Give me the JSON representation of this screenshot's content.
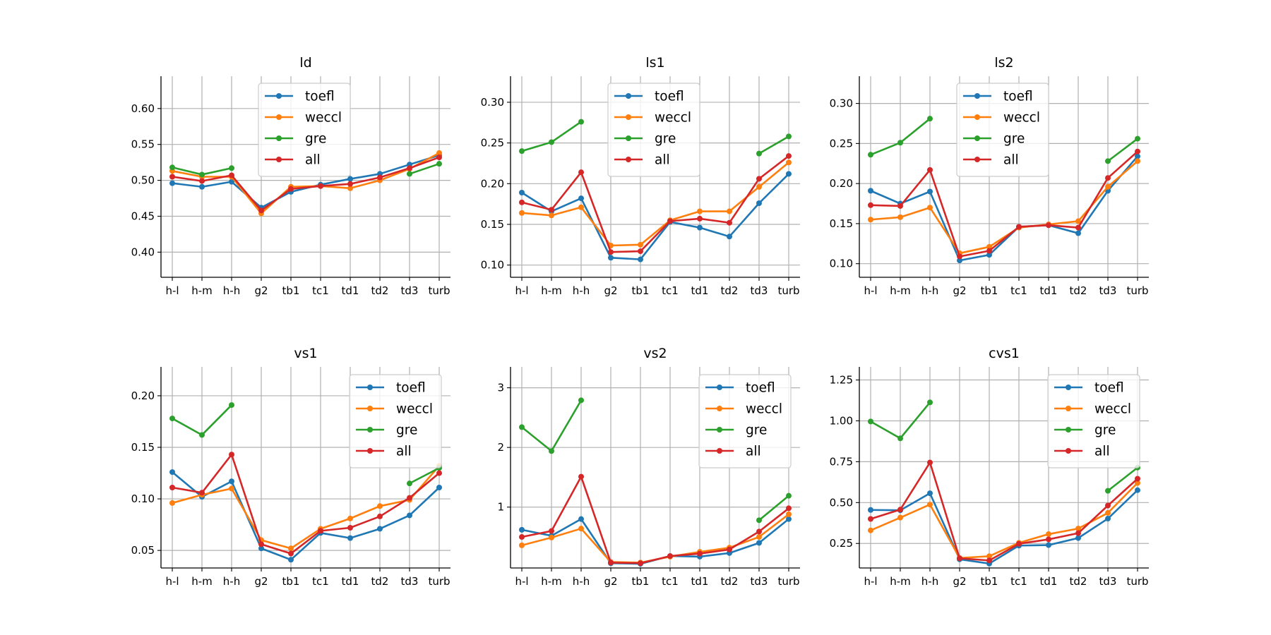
{
  "chart_data": [
    {
      "type": "line",
      "title": "ld",
      "categories": [
        "h-l",
        "h-m",
        "h-h",
        "g2",
        "tb1",
        "tc1",
        "td1",
        "td2",
        "td3",
        "turb"
      ],
      "ylim": [
        0.365,
        0.645
      ],
      "yticks": [
        0.4,
        0.45,
        0.5,
        0.55,
        0.6
      ],
      "ytick_labels": [
        "0.40",
        "0.45",
        "0.50",
        "0.55",
        "0.60"
      ],
      "grid": true,
      "legend": "top-center",
      "series": [
        {
          "name": "toefl",
          "color": "#1f77b4",
          "values": [
            0.496,
            0.491,
            0.498,
            0.462,
            0.484,
            0.494,
            0.502,
            0.509,
            0.522,
            0.535
          ]
        },
        {
          "name": "weccl",
          "color": "#ff7f0e",
          "values": [
            0.513,
            0.505,
            0.505,
            0.454,
            0.491,
            0.492,
            0.489,
            0.5,
            0.516,
            0.538
          ]
        },
        {
          "name": "gre",
          "color": "#2ca02c",
          "values": [
            0.518,
            0.508,
            0.517,
            null,
            null,
            null,
            null,
            null,
            0.509,
            0.523
          ]
        },
        {
          "name": "all",
          "color": "#d62728",
          "values": [
            0.505,
            0.499,
            0.507,
            0.458,
            0.488,
            0.492,
            0.495,
            0.504,
            0.517,
            0.532
          ]
        }
      ]
    },
    {
      "type": "line",
      "title": "ls1",
      "categories": [
        "h-l",
        "h-m",
        "h-h",
        "g2",
        "tb1",
        "tc1",
        "td1",
        "td2",
        "td3",
        "turb"
      ],
      "ylim": [
        0.085,
        0.332
      ],
      "yticks": [
        0.1,
        0.15,
        0.2,
        0.25,
        0.3
      ],
      "ytick_labels": [
        "0.10",
        "0.15",
        "0.20",
        "0.25",
        "0.30"
      ],
      "grid": true,
      "legend": "top-center",
      "series": [
        {
          "name": "toefl",
          "color": "#1f77b4",
          "values": [
            0.189,
            0.166,
            0.182,
            0.109,
            0.107,
            0.153,
            0.146,
            0.135,
            0.176,
            0.212
          ]
        },
        {
          "name": "weccl",
          "color": "#ff7f0e",
          "values": [
            0.164,
            0.161,
            0.171,
            0.124,
            0.125,
            0.155,
            0.166,
            0.166,
            0.196,
            0.226
          ]
        },
        {
          "name": "gre",
          "color": "#2ca02c",
          "values": [
            0.24,
            0.251,
            0.276,
            null,
            null,
            null,
            null,
            null,
            0.237,
            0.258
          ]
        },
        {
          "name": "all",
          "color": "#d62728",
          "values": [
            0.177,
            0.168,
            0.214,
            0.116,
            0.117,
            0.154,
            0.157,
            0.152,
            0.206,
            0.234
          ]
        }
      ]
    },
    {
      "type": "line",
      "title": "ls2",
      "categories": [
        "h-l",
        "h-m",
        "h-h",
        "g2",
        "tb1",
        "tc1",
        "td1",
        "td2",
        "td3",
        "turb"
      ],
      "ylim": [
        0.083,
        0.334
      ],
      "yticks": [
        0.1,
        0.15,
        0.2,
        0.25,
        0.3
      ],
      "ytick_labels": [
        "0.10",
        "0.15",
        "0.20",
        "0.25",
        "0.30"
      ],
      "grid": true,
      "legend": "top-center",
      "series": [
        {
          "name": "toefl",
          "color": "#1f77b4",
          "values": [
            0.191,
            0.175,
            0.19,
            0.104,
            0.111,
            0.146,
            0.148,
            0.138,
            0.191,
            0.234
          ]
        },
        {
          "name": "weccl",
          "color": "#ff7f0e",
          "values": [
            0.155,
            0.158,
            0.17,
            0.113,
            0.121,
            0.145,
            0.149,
            0.153,
            0.196,
            0.228
          ]
        },
        {
          "name": "gre",
          "color": "#2ca02c",
          "values": [
            0.236,
            0.251,
            0.281,
            null,
            null,
            null,
            null,
            null,
            0.228,
            0.256
          ]
        },
        {
          "name": "all",
          "color": "#d62728",
          "values": [
            0.173,
            0.172,
            0.217,
            0.109,
            0.116,
            0.146,
            0.148,
            0.145,
            0.207,
            0.24
          ]
        }
      ]
    },
    {
      "type": "line",
      "title": "vs1",
      "categories": [
        "h-l",
        "h-m",
        "h-h",
        "g2",
        "tb1",
        "tc1",
        "td1",
        "td2",
        "td3",
        "turb"
      ],
      "ylim": [
        0.033,
        0.228
      ],
      "yticks": [
        0.05,
        0.1,
        0.15,
        0.2
      ],
      "ytick_labels": [
        "0.05",
        "0.10",
        "0.15",
        "0.20"
      ],
      "grid": true,
      "legend": "top-right",
      "series": [
        {
          "name": "toefl",
          "color": "#1f77b4",
          "values": [
            0.126,
            0.102,
            0.117,
            0.052,
            0.041,
            0.067,
            0.062,
            0.071,
            0.084,
            0.111
          ]
        },
        {
          "name": "weccl",
          "color": "#ff7f0e",
          "values": [
            0.096,
            0.104,
            0.11,
            0.06,
            0.052,
            0.071,
            0.081,
            0.093,
            0.099,
            0.132
          ]
        },
        {
          "name": "gre",
          "color": "#2ca02c",
          "values": [
            0.178,
            0.162,
            0.191,
            null,
            null,
            null,
            null,
            null,
            0.115,
            0.13
          ]
        },
        {
          "name": "all",
          "color": "#d62728",
          "values": [
            0.111,
            0.106,
            0.143,
            0.056,
            0.047,
            0.069,
            0.072,
            0.083,
            0.101,
            0.125
          ]
        }
      ]
    },
    {
      "type": "line",
      "title": "vs2",
      "categories": [
        "h-l",
        "h-m",
        "h-h",
        "g2",
        "tb1",
        "tc1",
        "td1",
        "td2",
        "td3",
        "turb"
      ],
      "ylim": [
        -0.02,
        3.35
      ],
      "yticks": [
        1,
        2,
        3
      ],
      "ytick_labels": [
        "1",
        "2",
        "3"
      ],
      "grid": true,
      "legend": "top-right",
      "series": [
        {
          "name": "toefl",
          "color": "#1f77b4",
          "values": [
            0.62,
            0.52,
            0.8,
            0.06,
            0.05,
            0.18,
            0.17,
            0.23,
            0.4,
            0.8
          ]
        },
        {
          "name": "weccl",
          "color": "#ff7f0e",
          "values": [
            0.36,
            0.49,
            0.64,
            0.08,
            0.07,
            0.17,
            0.25,
            0.32,
            0.5,
            0.88
          ]
        },
        {
          "name": "gre",
          "color": "#2ca02c",
          "values": [
            2.34,
            1.94,
            2.79,
            null,
            null,
            null,
            null,
            null,
            0.78,
            1.19
          ]
        },
        {
          "name": "all",
          "color": "#d62728",
          "values": [
            0.5,
            0.6,
            1.51,
            0.07,
            0.06,
            0.18,
            0.22,
            0.29,
            0.59,
            0.98
          ]
        }
      ]
    },
    {
      "type": "line",
      "title": "cvs1",
      "categories": [
        "h-l",
        "h-m",
        "h-h",
        "g2",
        "tb1",
        "tc1",
        "td1",
        "td2",
        "td3",
        "turb"
      ],
      "ylim": [
        0.1,
        1.33
      ],
      "yticks": [
        0.25,
        0.5,
        0.75,
        1.0,
        1.25
      ],
      "ytick_labels": [
        "0.25",
        "0.50",
        "0.75",
        "1.00",
        "1.25"
      ],
      "grid": true,
      "legend": "top-right",
      "series": [
        {
          "name": "toefl",
          "color": "#1f77b4",
          "values": [
            0.455,
            0.453,
            0.557,
            0.153,
            0.127,
            0.237,
            0.24,
            0.283,
            0.402,
            0.576
          ]
        },
        {
          "name": "weccl",
          "color": "#ff7f0e",
          "values": [
            0.33,
            0.408,
            0.488,
            0.161,
            0.172,
            0.254,
            0.307,
            0.341,
            0.437,
            0.62
          ]
        },
        {
          "name": "gre",
          "color": "#2ca02c",
          "values": [
            0.996,
            0.893,
            1.113,
            null,
            null,
            null,
            null,
            null,
            0.572,
            0.714
          ]
        },
        {
          "name": "all",
          "color": "#d62728",
          "values": [
            0.4,
            0.457,
            0.745,
            0.159,
            0.146,
            0.248,
            0.275,
            0.313,
            0.482,
            0.646
          ]
        }
      ]
    }
  ]
}
